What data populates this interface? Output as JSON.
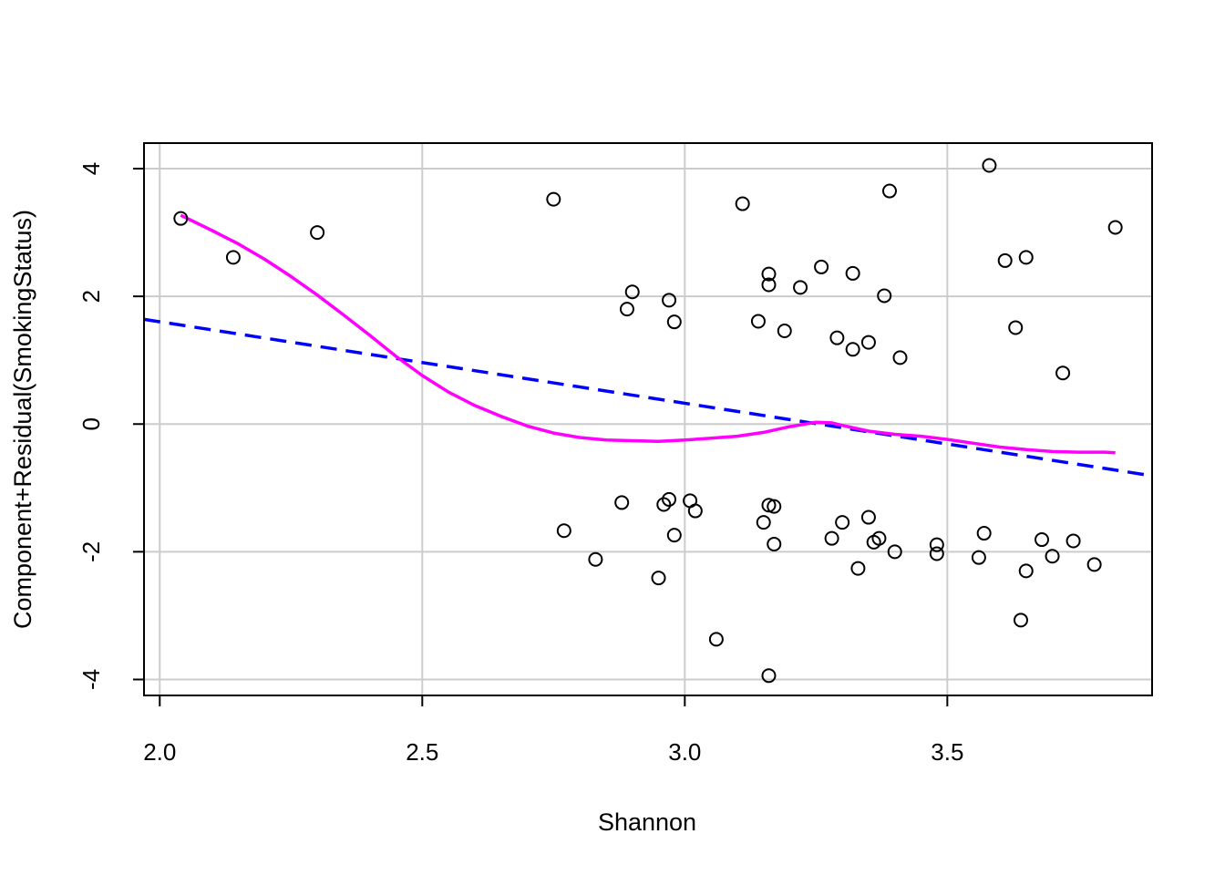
{
  "chart_data": {
    "type": "scatter",
    "title": "",
    "xlabel": "Shannon",
    "ylabel": "Component+Residual(SmokingStatus)",
    "xlim": [
      1.97,
      3.89
    ],
    "ylim": [
      -4.25,
      4.4
    ],
    "xticks": [
      2.0,
      2.5,
      3.0,
      3.5
    ],
    "xtick_labels": [
      "2.0",
      "2.5",
      "3.0",
      "3.5"
    ],
    "yticks": [
      -4,
      -2,
      0,
      2,
      4
    ],
    "ytick_labels": [
      "-4",
      "-2",
      "0",
      "2",
      "4"
    ],
    "grid": true,
    "points": [
      {
        "x": 2.04,
        "y": 3.22
      },
      {
        "x": 2.14,
        "y": 2.61
      },
      {
        "x": 2.3,
        "y": 3.0
      },
      {
        "x": 2.75,
        "y": 3.52
      },
      {
        "x": 2.77,
        "y": -1.67
      },
      {
        "x": 2.83,
        "y": -2.12
      },
      {
        "x": 2.88,
        "y": -1.23
      },
      {
        "x": 2.89,
        "y": 1.8
      },
      {
        "x": 2.9,
        "y": 2.07
      },
      {
        "x": 2.95,
        "y": -2.41
      },
      {
        "x": 2.96,
        "y": -1.26
      },
      {
        "x": 2.97,
        "y": -1.18
      },
      {
        "x": 2.97,
        "y": 1.94
      },
      {
        "x": 2.98,
        "y": 1.6
      },
      {
        "x": 2.98,
        "y": -1.74
      },
      {
        "x": 3.01,
        "y": -1.2
      },
      {
        "x": 3.02,
        "y": -1.36
      },
      {
        "x": 3.06,
        "y": -3.37
      },
      {
        "x": 3.11,
        "y": 3.45
      },
      {
        "x": 3.14,
        "y": 1.61
      },
      {
        "x": 3.15,
        "y": -1.54
      },
      {
        "x": 3.16,
        "y": -1.27
      },
      {
        "x": 3.16,
        "y": -3.94
      },
      {
        "x": 3.16,
        "y": 2.35
      },
      {
        "x": 3.16,
        "y": 2.18
      },
      {
        "x": 3.17,
        "y": -1.29
      },
      {
        "x": 3.17,
        "y": -1.88
      },
      {
        "x": 3.19,
        "y": 1.46
      },
      {
        "x": 3.22,
        "y": 2.14
      },
      {
        "x": 3.26,
        "y": 2.46
      },
      {
        "x": 3.28,
        "y": -1.79
      },
      {
        "x": 3.29,
        "y": 1.35
      },
      {
        "x": 3.3,
        "y": -1.54
      },
      {
        "x": 3.32,
        "y": 2.36
      },
      {
        "x": 3.32,
        "y": 1.17
      },
      {
        "x": 3.33,
        "y": -2.26
      },
      {
        "x": 3.35,
        "y": 1.28
      },
      {
        "x": 3.35,
        "y": -1.46
      },
      {
        "x": 3.36,
        "y": -1.85
      },
      {
        "x": 3.37,
        "y": -1.79
      },
      {
        "x": 3.38,
        "y": 2.01
      },
      {
        "x": 3.39,
        "y": 3.65
      },
      {
        "x": 3.4,
        "y": -2.0
      },
      {
        "x": 3.41,
        "y": 1.04
      },
      {
        "x": 3.48,
        "y": -2.03
      },
      {
        "x": 3.48,
        "y": -1.89
      },
      {
        "x": 3.56,
        "y": -2.09
      },
      {
        "x": 3.57,
        "y": -1.71
      },
      {
        "x": 3.58,
        "y": 4.05
      },
      {
        "x": 3.61,
        "y": 2.56
      },
      {
        "x": 3.63,
        "y": 1.51
      },
      {
        "x": 3.64,
        "y": -3.07
      },
      {
        "x": 3.65,
        "y": 2.61
      },
      {
        "x": 3.65,
        "y": -2.3
      },
      {
        "x": 3.68,
        "y": -1.81
      },
      {
        "x": 3.7,
        "y": -2.07
      },
      {
        "x": 3.72,
        "y": 0.8
      },
      {
        "x": 3.74,
        "y": -1.83
      },
      {
        "x": 3.78,
        "y": -2.2
      },
      {
        "x": 3.82,
        "y": 3.08
      }
    ],
    "linear_fit": {
      "x": [
        1.97,
        3.89
      ],
      "y": [
        1.64,
        -0.81
      ],
      "color": "#0000ff",
      "style": "dashed"
    },
    "smooth_fit": {
      "color": "#ff00ff",
      "x": [
        2.04,
        2.1,
        2.15,
        2.2,
        2.25,
        2.3,
        2.35,
        2.4,
        2.45,
        2.5,
        2.55,
        2.6,
        2.65,
        2.7,
        2.75,
        2.8,
        2.85,
        2.9,
        2.95,
        3.0,
        3.05,
        3.1,
        3.15,
        3.2,
        3.25,
        3.28,
        3.3,
        3.35,
        3.4,
        3.45,
        3.5,
        3.55,
        3.6,
        3.65,
        3.7,
        3.75,
        3.8,
        3.82
      ],
      "y": [
        3.27,
        3.03,
        2.82,
        2.58,
        2.31,
        2.02,
        1.71,
        1.39,
        1.06,
        0.76,
        0.5,
        0.29,
        0.12,
        -0.03,
        -0.14,
        -0.21,
        -0.25,
        -0.26,
        -0.27,
        -0.25,
        -0.22,
        -0.19,
        -0.13,
        -0.04,
        0.03,
        0.02,
        -0.02,
        -0.11,
        -0.16,
        -0.19,
        -0.24,
        -0.3,
        -0.36,
        -0.4,
        -0.43,
        -0.44,
        -0.44,
        -0.45
      ]
    }
  }
}
